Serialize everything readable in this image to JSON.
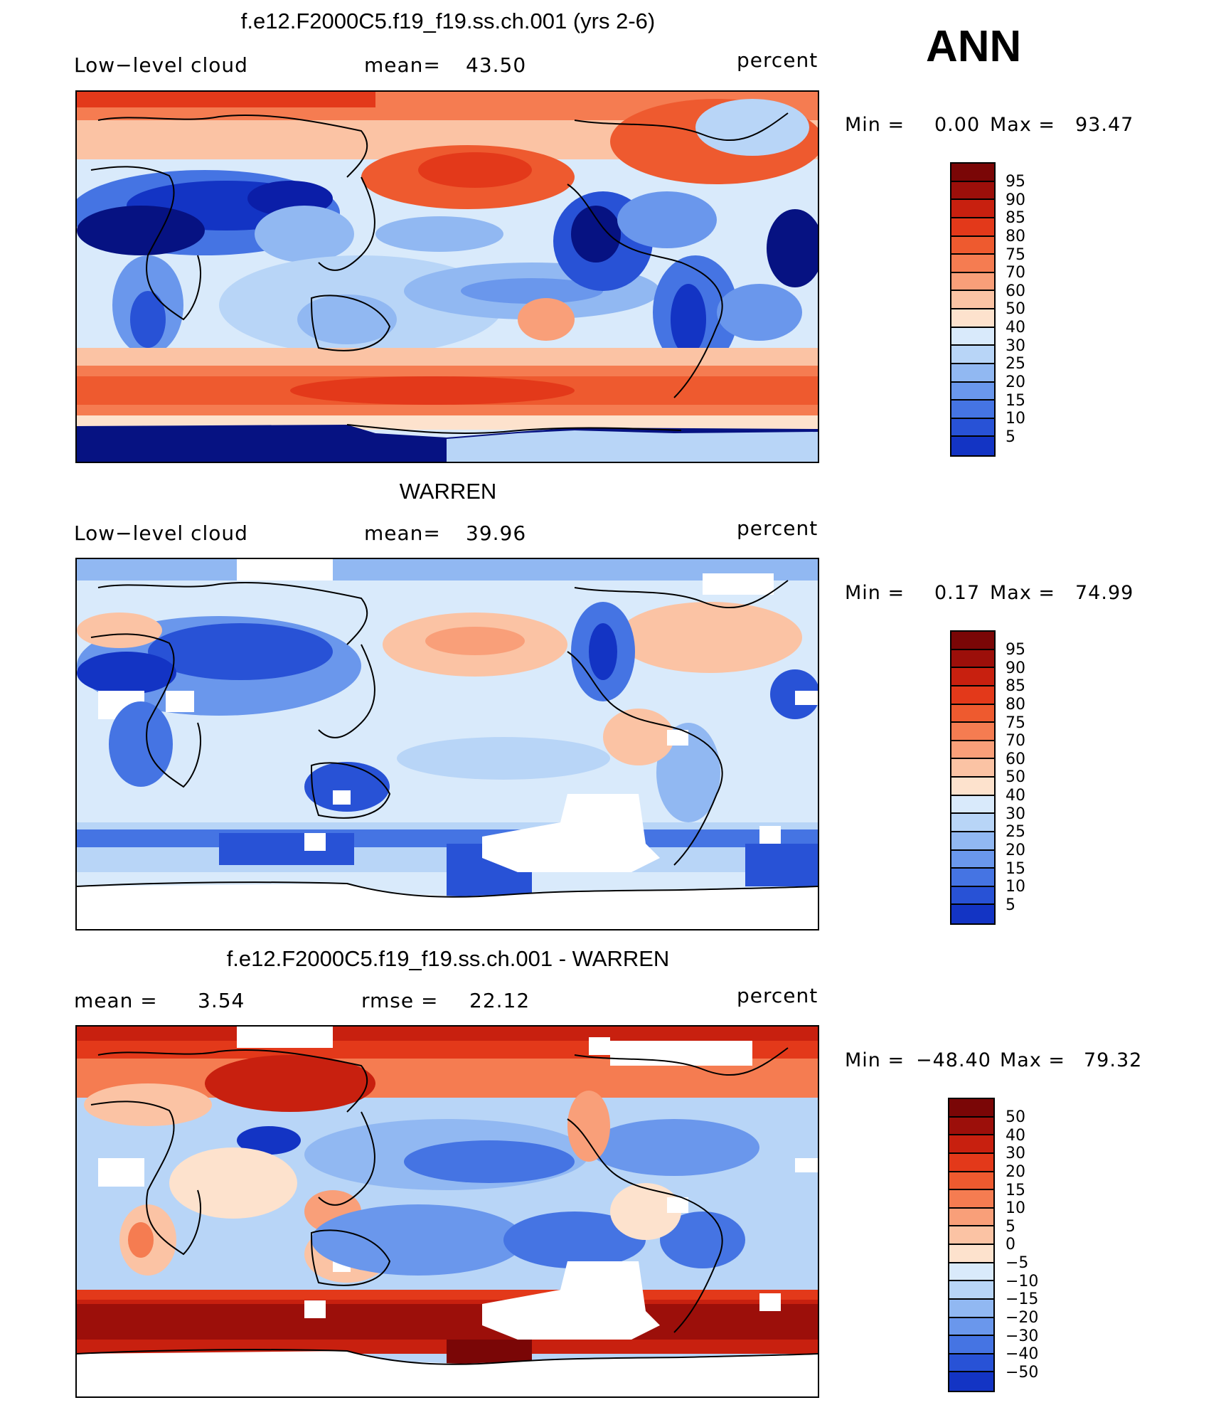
{
  "season": "ANN",
  "colors": {
    "pos": [
      "#fde2cd",
      "#fbc3a4",
      "#f99f79",
      "#f57c51",
      "#ee5a2f",
      "#e3391a",
      "#c8200f",
      "#9c0f0a",
      "#7a0606"
    ],
    "neg": [
      "#d9eafb",
      "#b8d5f7",
      "#91b8f2",
      "#6a97ec",
      "#4574e3",
      "#2852d6",
      "#1334c4",
      "#0b1ea8",
      "#061282"
    ]
  },
  "panels": [
    {
      "title": "f.e12.F2000C5.f19_f19.ss.ch.001 (yrs 2-6)",
      "left_label": "Low−level  cloud",
      "mid_label": "mean=",
      "mid_value": "43.50",
      "units": "percent",
      "min_label": "Min  =",
      "min_value": "0.00",
      "max_label": "Max  =",
      "max_value": "93.47",
      "levels": [
        "95",
        "90",
        "85",
        "80",
        "75",
        "70",
        "60",
        "50",
        "40",
        "30",
        "25",
        "20",
        "15",
        "10",
        "5"
      ]
    },
    {
      "title": "WARREN",
      "left_label": "Low−level  cloud",
      "mid_label": "mean=",
      "mid_value": "39.96",
      "units": "percent",
      "min_label": "Min  =",
      "min_value": "0.17",
      "max_label": "Max  =",
      "max_value": "74.99",
      "levels": [
        "95",
        "90",
        "85",
        "80",
        "75",
        "70",
        "60",
        "50",
        "40",
        "30",
        "25",
        "20",
        "15",
        "10",
        "5"
      ]
    },
    {
      "title": "f.e12.F2000C5.f19_f19.ss.ch.001 - WARREN",
      "left_label": "mean  =",
      "left_value": "3.54",
      "mid_label": "rmse  =",
      "mid_value": "22.12",
      "units": "percent",
      "min_label": "Min  =",
      "min_value": "−48.40",
      "max_label": "Max  =",
      "max_value": "79.32",
      "levels": [
        "50",
        "40",
        "30",
        "20",
        "15",
        "10",
        "5",
        "0",
        "−5",
        "−10",
        "−15",
        "−20",
        "−30",
        "−40",
        "−50"
      ]
    }
  ]
}
